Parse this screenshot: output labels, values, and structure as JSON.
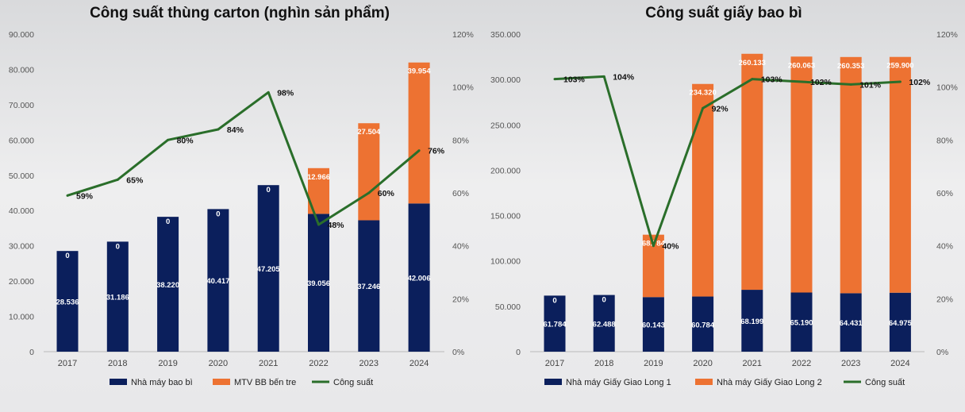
{
  "colors": {
    "series1": "#0b1f5c",
    "series2": "#ed7232",
    "line": "#2a6e2a"
  },
  "chart_data": [
    {
      "type": "bar",
      "title": "Công suất thùng carton (nghìn sản phẩm)",
      "categories": [
        "2017",
        "2018",
        "2019",
        "2020",
        "2021",
        "2022",
        "2023",
        "2024"
      ],
      "left_ticks": [
        "0",
        "10.000",
        "20.000",
        "30.000",
        "40.000",
        "50.000",
        "60.000",
        "70.000",
        "80.000",
        "90.000"
      ],
      "right_ticks": [
        "0%",
        "20%",
        "40%",
        "60%",
        "80%",
        "100%",
        "120%"
      ],
      "ylim": [
        0,
        90000
      ],
      "y2lim": [
        0,
        120
      ],
      "stacked": true,
      "series": [
        {
          "name": "Nhà máy bao bì",
          "kind": "bar",
          "values": [
            28536,
            31186,
            38220,
            40417,
            47205,
            39056,
            37246,
            42006
          ],
          "labels": [
            "28.536",
            "31.186",
            "38.220",
            "40.417",
            "47.205",
            "39.056",
            "37.246",
            "42.006"
          ]
        },
        {
          "name": "MTV BB bến tre",
          "kind": "bar",
          "values": [
            0,
            0,
            0,
            0,
            0,
            12966,
            27504,
            39954
          ],
          "labels": [
            "0",
            "0",
            "0",
            "0",
            "0",
            "12.966",
            "27.504",
            "39.954"
          ]
        },
        {
          "name": "Công suất",
          "kind": "line",
          "axis": "right",
          "values": [
            59,
            65,
            80,
            84,
            98,
            48,
            60,
            76
          ],
          "labels": [
            "59%",
            "65%",
            "80%",
            "84%",
            "98%",
            "48%",
            "60%",
            "76%"
          ]
        }
      ]
    },
    {
      "type": "bar",
      "title": "Công suất giấy bao bì",
      "categories": [
        "2017",
        "2018",
        "2019",
        "2020",
        "2021",
        "2022",
        "2023",
        "2024"
      ],
      "left_ticks": [
        "0",
        "50.000",
        "100.000",
        "150.000",
        "200.000",
        "250.000",
        "300.000",
        "350.000"
      ],
      "right_ticks": [
        "0%",
        "20%",
        "40%",
        "60%",
        "80%",
        "100%",
        "120%"
      ],
      "ylim": [
        0,
        350000
      ],
      "y2lim": [
        0,
        120
      ],
      "stacked": true,
      "series": [
        {
          "name": "Nhà máy Giấy Giao Long 1",
          "kind": "bar",
          "values": [
            61784,
            62488,
            60143,
            60784,
            68199,
            65190,
            64431,
            64975
          ],
          "labels": [
            "61.784",
            "62.488",
            "60.143",
            "60.784",
            "68.199",
            "65.190",
            "64.431",
            "64.975"
          ]
        },
        {
          "name": "Nhà máy Giấy Giao Long 2",
          "kind": "bar",
          "values": [
            0,
            0,
            68784,
            234320,
            260133,
            260063,
            260353,
            259900
          ],
          "labels": [
            "0",
            "0",
            "68.784",
            "234.320",
            "260.133",
            "260.063",
            "260.353",
            "259.900"
          ]
        },
        {
          "name": "Công suất",
          "kind": "line",
          "axis": "right",
          "values": [
            103,
            104,
            40,
            92,
            103,
            102,
            101,
            102
          ],
          "labels": [
            "103%",
            "104%",
            "40%",
            "92%",
            "103%",
            "102%",
            "101%",
            "102%"
          ]
        }
      ]
    }
  ]
}
